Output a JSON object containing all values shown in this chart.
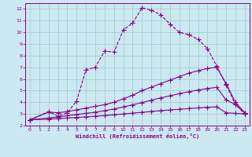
{
  "xlabel": "Windchill (Refroidissement éolien,°C)",
  "bg_color": "#cce8f0",
  "grid_color": "#99cccc",
  "line_color": "#880088",
  "xlim": [
    -0.5,
    23.5
  ],
  "ylim": [
    2,
    12.5
  ],
  "xticks": [
    0,
    1,
    2,
    3,
    4,
    5,
    6,
    7,
    8,
    9,
    10,
    11,
    12,
    13,
    14,
    15,
    16,
    17,
    18,
    19,
    20,
    21,
    22,
    23
  ],
  "yticks": [
    2,
    3,
    4,
    5,
    6,
    7,
    8,
    9,
    10,
    11,
    12
  ],
  "line1_x": [
    0,
    2,
    3,
    4,
    5,
    6,
    7,
    8,
    9,
    10,
    11,
    12,
    13,
    14,
    15,
    16,
    17,
    18,
    19,
    20,
    21,
    22,
    23
  ],
  "line1_y": [
    2.5,
    3.2,
    2.8,
    3.1,
    4.1,
    6.8,
    7.0,
    8.4,
    8.3,
    10.2,
    10.8,
    12.1,
    11.9,
    11.5,
    10.7,
    10.0,
    9.8,
    9.4,
    8.6,
    7.1,
    5.5,
    3.8,
    3.0
  ],
  "line1_dotted": false,
  "line2_x": [
    0,
    2,
    3,
    4,
    5,
    6,
    7,
    8,
    9,
    10,
    11,
    12,
    13,
    14,
    15,
    16,
    17,
    18,
    19,
    20,
    21,
    22,
    23
  ],
  "line2_y": [
    2.5,
    3.15,
    3.1,
    3.2,
    3.35,
    3.5,
    3.65,
    3.8,
    4.0,
    4.3,
    4.6,
    5.0,
    5.3,
    5.6,
    5.9,
    6.2,
    6.5,
    6.7,
    6.9,
    7.0,
    5.6,
    4.0,
    3.1
  ],
  "line3_x": [
    0,
    2,
    3,
    4,
    5,
    6,
    7,
    8,
    9,
    10,
    11,
    12,
    13,
    14,
    15,
    16,
    17,
    18,
    19,
    20,
    21,
    22,
    23
  ],
  "line3_y": [
    2.5,
    2.65,
    2.75,
    2.85,
    2.95,
    3.05,
    3.15,
    3.28,
    3.42,
    3.6,
    3.78,
    3.98,
    4.18,
    4.38,
    4.56,
    4.74,
    4.9,
    5.05,
    5.18,
    5.28,
    4.2,
    3.8,
    3.1
  ],
  "line4_x": [
    0,
    2,
    3,
    4,
    5,
    6,
    7,
    8,
    9,
    10,
    11,
    12,
    13,
    14,
    15,
    16,
    17,
    18,
    19,
    20,
    21,
    22,
    23
  ],
  "line4_y": [
    2.5,
    2.55,
    2.6,
    2.65,
    2.7,
    2.75,
    2.8,
    2.87,
    2.93,
    3.0,
    3.07,
    3.14,
    3.21,
    3.28,
    3.34,
    3.4,
    3.46,
    3.52,
    3.57,
    3.61,
    3.1,
    3.05,
    3.0
  ]
}
